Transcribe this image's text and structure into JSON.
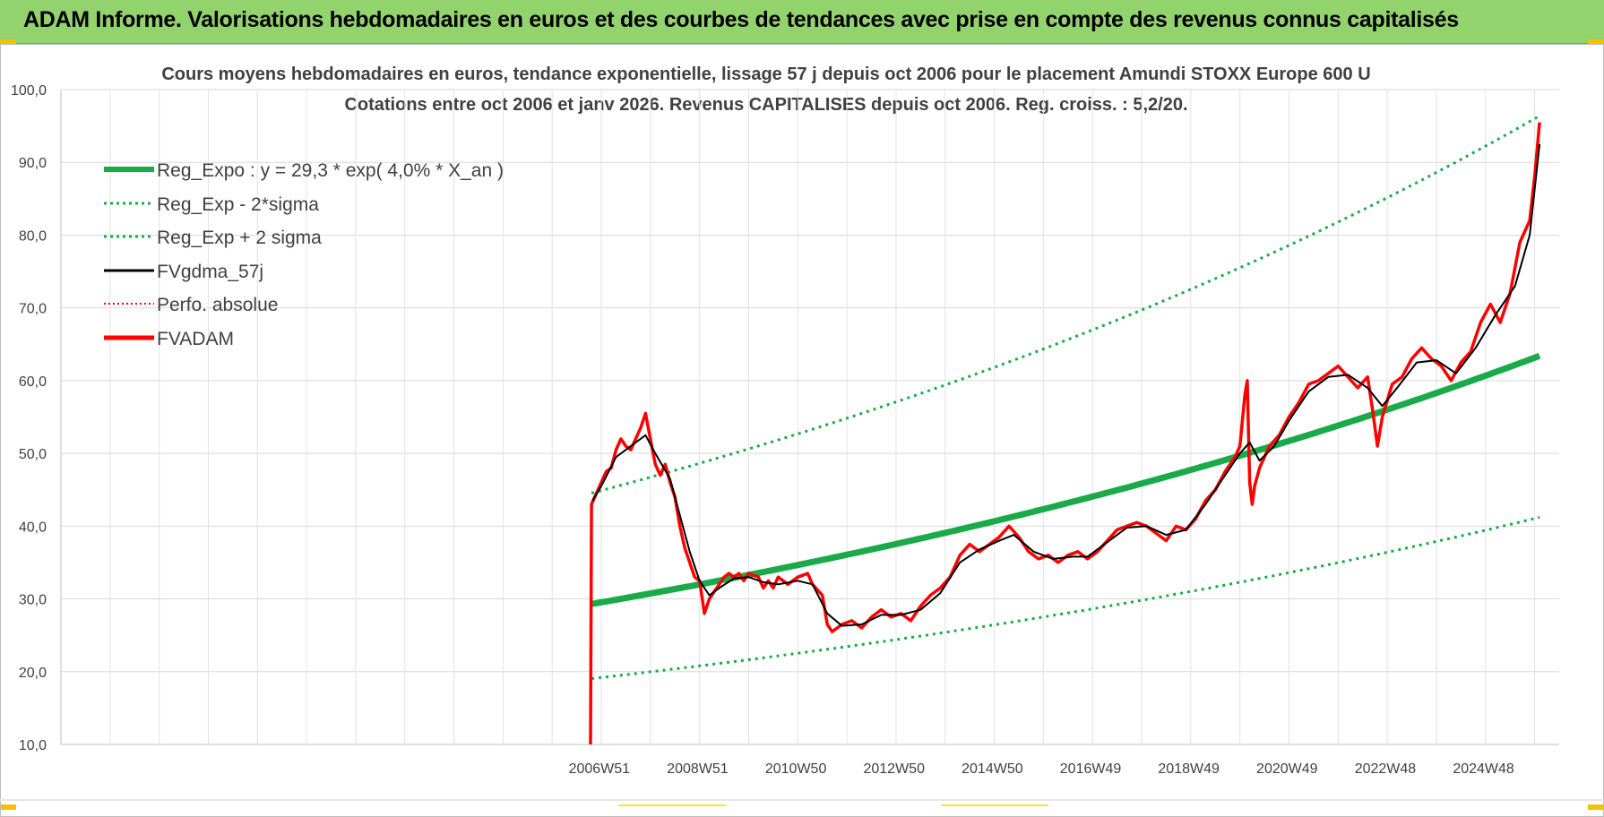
{
  "banner": {
    "title": "ADAM Informe. Valorisations hebdomadaires en euros et des courbes de tendances avec prise en compte des revenus connus capitalisés"
  },
  "chart_data": {
    "type": "line",
    "title_line1": "Cours moyens hebdomadaires en euros, tendance exponentielle, lissage 57 j depuis oct 2006 pour le placement Amundi STOXX Europe 600 U",
    "title_line2": "Cotations entre oct 2006 et janv 2026. Revenus CAPITALISES depuis oct 2006. Reg. croiss. : 5,2/20.",
    "y_ticks": [
      "10,0",
      "20,0",
      "30,0",
      "40,0",
      "50,0",
      "60,0",
      "70,0",
      "80,0",
      "90,0",
      "100,0"
    ],
    "ylim": [
      10,
      100
    ],
    "x_tick_labels": [
      "2006W51",
      "2008W51",
      "2010W50",
      "2012W50",
      "2014W50",
      "2016W49",
      "2018W49",
      "2020W49",
      "2022W48",
      "2024W48"
    ],
    "x_tick_years": [
      2006.96,
      2008.96,
      2010.96,
      2012.96,
      2014.96,
      2016.96,
      2018.96,
      2020.96,
      2022.96,
      2024.96
    ],
    "xlim": [
      1996.0,
      2026.5
    ],
    "gridlines": true,
    "legend_position": "top-left",
    "legend": [
      {
        "name": "Reg_Expo : y = 29,3 * exp( 4,0% *  X_an )",
        "color": "#1aaa4a",
        "style": "solid-thick"
      },
      {
        "name": "Reg_Exp - 2*sigma",
        "color": "#1aaa4a",
        "style": "dotted"
      },
      {
        "name": "Reg_Exp + 2 sigma",
        "color": "#1aaa4a",
        "style": "dotted"
      },
      {
        "name": "FVgdma_57j",
        "color": "#000000",
        "style": "solid"
      },
      {
        "name": "Perfo. absolue",
        "color": "#ff0000",
        "style": "dotted"
      },
      {
        "name": "FVADAM",
        "color": "#ff0000",
        "style": "solid-thick"
      }
    ],
    "regression": {
      "start_year": 2006.8,
      "end_year": 2026.1,
      "start_value": 29.3,
      "rate": 0.04,
      "sigma_factor_low": 0.65,
      "sigma_factor_high": 1.52
    },
    "series_fvadam": [
      [
        2006.78,
        10.0
      ],
      [
        2006.8,
        43.0
      ],
      [
        2006.9,
        44.5
      ],
      [
        2007.0,
        46.0
      ],
      [
        2007.1,
        47.5
      ],
      [
        2007.2,
        48.0
      ],
      [
        2007.3,
        50.5
      ],
      [
        2007.4,
        52.0
      ],
      [
        2007.5,
        51.0
      ],
      [
        2007.6,
        50.5
      ],
      [
        2007.7,
        52.0
      ],
      [
        2007.8,
        53.5
      ],
      [
        2007.9,
        55.5
      ],
      [
        2008.0,
        52.0
      ],
      [
        2008.1,
        48.5
      ],
      [
        2008.2,
        47.0
      ],
      [
        2008.3,
        48.5
      ],
      [
        2008.4,
        46.0
      ],
      [
        2008.5,
        44.0
      ],
      [
        2008.6,
        40.0
      ],
      [
        2008.7,
        37.0
      ],
      [
        2008.8,
        35.0
      ],
      [
        2008.9,
        33.0
      ],
      [
        2009.0,
        32.5
      ],
      [
        2009.1,
        28.0
      ],
      [
        2009.2,
        30.0
      ],
      [
        2009.3,
        31.0
      ],
      [
        2009.4,
        32.0
      ],
      [
        2009.5,
        33.0
      ],
      [
        2009.6,
        33.5
      ],
      [
        2009.7,
        33.0
      ],
      [
        2009.8,
        33.5
      ],
      [
        2009.9,
        32.5
      ],
      [
        2010.0,
        33.5
      ],
      [
        2010.2,
        33.0
      ],
      [
        2010.3,
        31.5
      ],
      [
        2010.4,
        32.5
      ],
      [
        2010.5,
        31.5
      ],
      [
        2010.6,
        33.0
      ],
      [
        2010.8,
        32.0
      ],
      [
        2011.0,
        33.0
      ],
      [
        2011.2,
        33.5
      ],
      [
        2011.3,
        32.0
      ],
      [
        2011.5,
        30.5
      ],
      [
        2011.6,
        26.5
      ],
      [
        2011.7,
        25.5
      ],
      [
        2011.9,
        26.5
      ],
      [
        2012.1,
        27.0
      ],
      [
        2012.3,
        26.0
      ],
      [
        2012.5,
        27.5
      ],
      [
        2012.7,
        28.5
      ],
      [
        2012.9,
        27.5
      ],
      [
        2013.1,
        28.0
      ],
      [
        2013.3,
        27.0
      ],
      [
        2013.5,
        29.0
      ],
      [
        2013.7,
        30.5
      ],
      [
        2013.9,
        31.5
      ],
      [
        2014.1,
        33.0
      ],
      [
        2014.3,
        36.0
      ],
      [
        2014.5,
        37.5
      ],
      [
        2014.7,
        36.5
      ],
      [
        2014.9,
        37.5
      ],
      [
        2015.1,
        38.5
      ],
      [
        2015.3,
        40.0
      ],
      [
        2015.5,
        38.5
      ],
      [
        2015.7,
        36.5
      ],
      [
        2015.9,
        35.5
      ],
      [
        2016.1,
        36.0
      ],
      [
        2016.3,
        35.0
      ],
      [
        2016.5,
        36.0
      ],
      [
        2016.7,
        36.5
      ],
      [
        2016.9,
        35.5
      ],
      [
        2017.1,
        36.5
      ],
      [
        2017.3,
        38.0
      ],
      [
        2017.5,
        39.5
      ],
      [
        2017.7,
        40.0
      ],
      [
        2017.9,
        40.5
      ],
      [
        2018.1,
        40.0
      ],
      [
        2018.3,
        39.0
      ],
      [
        2018.5,
        38.0
      ],
      [
        2018.7,
        40.0
      ],
      [
        2018.9,
        39.5
      ],
      [
        2019.1,
        41.0
      ],
      [
        2019.3,
        43.5
      ],
      [
        2019.5,
        45.0
      ],
      [
        2019.7,
        47.5
      ],
      [
        2019.9,
        49.5
      ],
      [
        2020.0,
        51.0
      ],
      [
        2020.1,
        58.0
      ],
      [
        2020.15,
        60.0
      ],
      [
        2020.2,
        46.0
      ],
      [
        2020.25,
        43.0
      ],
      [
        2020.3,
        45.5
      ],
      [
        2020.4,
        48.0
      ],
      [
        2020.6,
        51.0
      ],
      [
        2020.8,
        52.5
      ],
      [
        2021.0,
        55.0
      ],
      [
        2021.2,
        57.0
      ],
      [
        2021.4,
        59.5
      ],
      [
        2021.6,
        60.0
      ],
      [
        2021.8,
        61.0
      ],
      [
        2022.0,
        62.0
      ],
      [
        2022.2,
        60.5
      ],
      [
        2022.4,
        59.0
      ],
      [
        2022.6,
        60.5
      ],
      [
        2022.7,
        56.0
      ],
      [
        2022.8,
        51.0
      ],
      [
        2022.9,
        55.0
      ],
      [
        2023.1,
        59.5
      ],
      [
        2023.3,
        60.5
      ],
      [
        2023.5,
        63.0
      ],
      [
        2023.7,
        64.5
      ],
      [
        2023.9,
        63.0
      ],
      [
        2024.1,
        62.0
      ],
      [
        2024.3,
        60.0
      ],
      [
        2024.5,
        62.5
      ],
      [
        2024.7,
        64.0
      ],
      [
        2024.9,
        68.0
      ],
      [
        2025.1,
        70.5
      ],
      [
        2025.3,
        68.0
      ],
      [
        2025.5,
        72.0
      ],
      [
        2025.7,
        79.0
      ],
      [
        2025.9,
        82.0
      ],
      [
        2026.0,
        88.0
      ],
      [
        2026.1,
        95.5
      ]
    ],
    "series_fvgdma": [
      [
        2006.82,
        43.5
      ],
      [
        2007.0,
        45.5
      ],
      [
        2007.3,
        49.5
      ],
      [
        2007.6,
        51.0
      ],
      [
        2007.9,
        52.5
      ],
      [
        2008.1,
        50.0
      ],
      [
        2008.4,
        46.5
      ],
      [
        2008.6,
        41.5
      ],
      [
        2008.8,
        36.5
      ],
      [
        2009.0,
        32.5
      ],
      [
        2009.2,
        30.5
      ],
      [
        2009.4,
        31.5
      ],
      [
        2009.7,
        32.8
      ],
      [
        2010.0,
        33.0
      ],
      [
        2010.3,
        32.3
      ],
      [
        2010.6,
        32.0
      ],
      [
        2011.0,
        32.5
      ],
      [
        2011.3,
        32.0
      ],
      [
        2011.6,
        28.0
      ],
      [
        2011.9,
        26.3
      ],
      [
        2012.3,
        26.5
      ],
      [
        2012.7,
        27.8
      ],
      [
        2013.1,
        27.8
      ],
      [
        2013.5,
        28.5
      ],
      [
        2013.9,
        30.8
      ],
      [
        2014.3,
        35.0
      ],
      [
        2014.7,
        36.8
      ],
      [
        2015.1,
        38.0
      ],
      [
        2015.4,
        38.8
      ],
      [
        2015.8,
        36.5
      ],
      [
        2016.2,
        35.5
      ],
      [
        2016.6,
        35.8
      ],
      [
        2016.9,
        35.8
      ],
      [
        2017.3,
        37.8
      ],
      [
        2017.7,
        39.8
      ],
      [
        2018.1,
        40.0
      ],
      [
        2018.5,
        38.8
      ],
      [
        2018.9,
        39.5
      ],
      [
        2019.3,
        43.0
      ],
      [
        2019.7,
        47.0
      ],
      [
        2020.0,
        50.0
      ],
      [
        2020.2,
        51.5
      ],
      [
        2020.4,
        49.0
      ],
      [
        2020.7,
        51.0
      ],
      [
        2021.0,
        54.5
      ],
      [
        2021.4,
        58.5
      ],
      [
        2021.8,
        60.5
      ],
      [
        2022.2,
        60.8
      ],
      [
        2022.6,
        59.0
      ],
      [
        2022.9,
        56.5
      ],
      [
        2023.2,
        59.0
      ],
      [
        2023.6,
        62.5
      ],
      [
        2024.0,
        62.8
      ],
      [
        2024.4,
        61.0
      ],
      [
        2024.8,
        64.5
      ],
      [
        2025.2,
        69.0
      ],
      [
        2025.6,
        73.0
      ],
      [
        2025.9,
        80.0
      ],
      [
        2026.1,
        92.5
      ]
    ]
  }
}
